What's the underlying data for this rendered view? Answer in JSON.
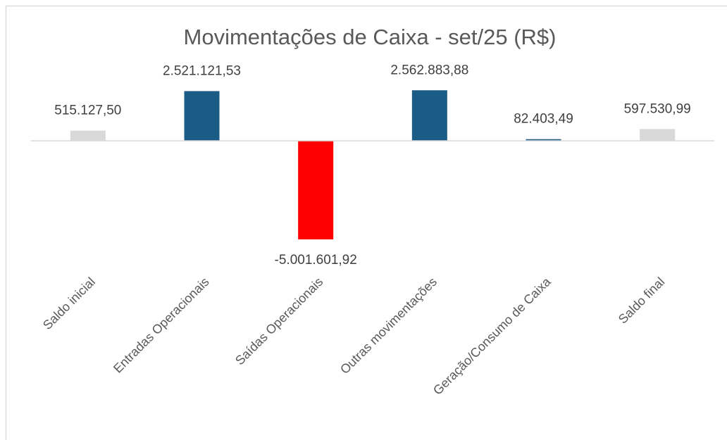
{
  "chart_data": {
    "type": "bar",
    "title": "Movimentações de Caixa - set/25 (R$)",
    "categories": [
      "Saldo inicial",
      "Entradas Operacionais",
      "Saídas Operacionais",
      "Outras movimentações",
      "Geração/Consumo de Caixa",
      "Saldo final"
    ],
    "values": [
      515127.5,
      2521121.53,
      -5001601.92,
      2562883.88,
      82403.49,
      597530.99
    ],
    "value_labels": [
      "515.127,50",
      "2.521.121,53",
      "-5.001.601,92",
      "2.562.883,88",
      "82.403,49",
      "597.530,99"
    ],
    "colors": [
      "#d9d9d9",
      "#1a5c85",
      "#ff0000",
      "#1a5c85",
      "#1a5c85",
      "#d9d9d9"
    ],
    "ylim": [
      -7000000,
      4000000
    ]
  }
}
